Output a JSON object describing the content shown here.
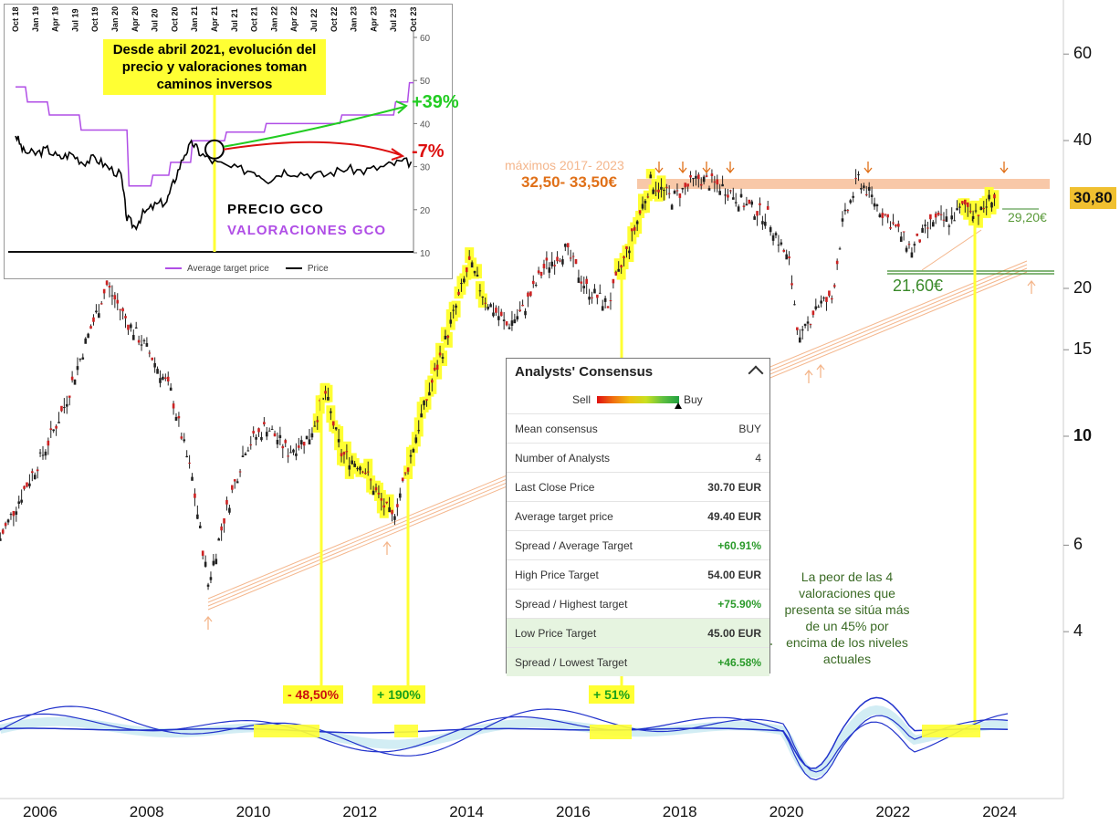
{
  "chart_data": [
    {
      "type": "line",
      "y_scale": "log",
      "y_ticks": [
        4,
        6,
        10,
        15,
        20,
        40,
        60
      ],
      "x_ticks": [
        "2006",
        "2008",
        "2010",
        "2012",
        "2014",
        "2016",
        "2018",
        "2020",
        "2022",
        "2024"
      ],
      "series": [
        {
          "values": [
            [
              2005.2,
              6.2
            ],
            [
              2005.6,
              7.6
            ],
            [
              2006.0,
              9.2
            ],
            [
              2006.4,
              11.5
            ],
            [
              2006.8,
              15.5
            ],
            [
              2007.2,
              20.3
            ],
            [
              2007.6,
              17.0
            ],
            [
              2008.0,
              14.8
            ],
            [
              2008.4,
              12.3
            ],
            [
              2008.8,
              8.2
            ],
            [
              2009.1,
              5.0
            ],
            [
              2009.4,
              6.8
            ],
            [
              2009.8,
              9.5
            ],
            [
              2010.2,
              10.5
            ],
            [
              2010.6,
              9.3
            ],
            [
              2011.0,
              10.0
            ],
            [
              2011.3,
              12.2
            ],
            [
              2011.6,
              9.2
            ],
            [
              2012.0,
              8.7
            ],
            [
              2012.3,
              7.5
            ],
            [
              2012.55,
              6.8
            ],
            [
              2012.8,
              8.3
            ],
            [
              2013.1,
              11.0
            ],
            [
              2013.5,
              15.0
            ],
            [
              2014.0,
              22.5
            ],
            [
              2014.3,
              19.0
            ],
            [
              2014.7,
              16.8
            ],
            [
              2015.0,
              18.0
            ],
            [
              2015.4,
              22.0
            ],
            [
              2015.8,
              24.0
            ],
            [
              2016.2,
              20.0
            ],
            [
              2016.6,
              18.5
            ],
            [
              2017.0,
              24.5
            ],
            [
              2017.4,
              33.0
            ],
            [
              2017.8,
              30.5
            ],
            [
              2018.3,
              33.5
            ],
            [
              2018.8,
              32.0
            ],
            [
              2019.2,
              29.5
            ],
            [
              2019.6,
              28.0
            ],
            [
              2020.0,
              22.5
            ],
            [
              2020.2,
              15.5
            ],
            [
              2020.5,
              18.5
            ],
            [
              2020.8,
              19.0
            ],
            [
              2021.0,
              27.0
            ],
            [
              2021.3,
              33.5
            ],
            [
              2021.7,
              29.0
            ],
            [
              2022.0,
              26.5
            ],
            [
              2022.3,
              24.0
            ],
            [
              2022.7,
              27.5
            ],
            [
              2023.0,
              27.5
            ],
            [
              2023.3,
              29.5
            ],
            [
              2023.6,
              28.5
            ],
            [
              2023.8,
              30.8
            ]
          ]
        }
      ],
      "annotations": [
        "máximos 2017- 2023",
        "32,50- 33,50€",
        "30,80",
        "29,20€",
        "21,60€"
      ],
      "oscillator_labels": [
        "- 48,50%",
        "+ 190%",
        "+ 51%"
      ]
    },
    {
      "type": "line",
      "x_ticks": [
        "Oct 18",
        "Jan 19",
        "Apr 19",
        "Jul 19",
        "Oct 19",
        "Jan 20",
        "Apr 20",
        "Jul 20",
        "Oct 20",
        "Jan 21",
        "Apr 21",
        "Jul 21",
        "Oct 21",
        "Jan 22",
        "Apr 22",
        "Jul 22",
        "Oct 22",
        "Jan 23",
        "Apr 23",
        "Jul 23",
        "Oct 23"
      ],
      "y_ticks": [
        10,
        20,
        30,
        40,
        50,
        60
      ],
      "ylim": [
        10,
        60
      ],
      "series": [
        {
          "name": "Average target price",
          "color": "#b04ee6",
          "values": [
            [
              0,
              48.5
            ],
            [
              0.5,
              48.5
            ],
            [
              0.6,
              45
            ],
            [
              1.6,
              45
            ],
            [
              1.7,
              42
            ],
            [
              3.2,
              42
            ],
            [
              3.3,
              38.5
            ],
            [
              5.6,
              38.5
            ],
            [
              5.7,
              25.5
            ],
            [
              6.8,
              25.5
            ],
            [
              6.9,
              28
            ],
            [
              7.7,
              28
            ],
            [
              7.8,
              31
            ],
            [
              8.8,
              31
            ],
            [
              8.9,
              36
            ],
            [
              10.5,
              36
            ],
            [
              10.6,
              38
            ],
            [
              12.5,
              38
            ],
            [
              12.6,
              40
            ],
            [
              16.3,
              40
            ],
            [
              16.4,
              42
            ],
            [
              19.0,
              42
            ],
            [
              19.1,
              45
            ],
            [
              19.7,
              45
            ],
            [
              19.8,
              49.5
            ],
            [
              20.0,
              49.5
            ]
          ]
        },
        {
          "name": "Price",
          "color": "#000000",
          "values": [
            [
              0,
              37.5
            ],
            [
              0.4,
              33.5
            ],
            [
              1.0,
              33
            ],
            [
              1.6,
              34
            ],
            [
              2.2,
              32
            ],
            [
              2.8,
              33
            ],
            [
              3.4,
              31
            ],
            [
              4.0,
              32
            ],
            [
              4.6,
              30
            ],
            [
              5.3,
              28
            ],
            [
              5.6,
              18
            ],
            [
              6.0,
              16
            ],
            [
              6.4,
              19
            ],
            [
              7.0,
              21
            ],
            [
              7.6,
              22
            ],
            [
              8.0,
              27
            ],
            [
              8.5,
              33
            ],
            [
              8.9,
              35.5
            ],
            [
              9.3,
              33
            ],
            [
              10.0,
              31
            ],
            [
              11.0,
              29.5
            ],
            [
              12.0,
              29
            ],
            [
              12.7,
              27
            ],
            [
              13.5,
              29
            ],
            [
              14.5,
              28.5
            ],
            [
              15.5,
              28
            ],
            [
              16.5,
              29.5
            ],
            [
              17.5,
              29
            ],
            [
              18.5,
              30
            ],
            [
              19.3,
              31
            ],
            [
              20.0,
              31
            ]
          ]
        }
      ],
      "annotations": [
        "Desde abril 2021, evolución del precio y valoraciones toman caminos inversos",
        "+39%",
        "-7%",
        "PRECIO GCO",
        "VALORACIONES GCO"
      ]
    }
  ],
  "inset": {
    "callout": "Desde abril 2021, evolución del precio y valoraciones toman caminos inversos",
    "gain": "+39%",
    "loss": "-7%",
    "price_label": "PRECIO GCO",
    "valuations_label": "VALORACIONES GCO",
    "legend_target": "Average target price",
    "legend_price": "Price",
    "y_ticks": [
      "60",
      "50",
      "40",
      "30",
      "20",
      "10"
    ],
    "x_ticks": [
      "Oct 18",
      "Jan 19",
      "Apr 19",
      "Jul 19",
      "Oct 19",
      "Jan 20",
      "Apr 20",
      "Jul 20",
      "Oct 20",
      "Jan 21",
      "Apr 21",
      "Jul 21",
      "Oct 21",
      "Jan 22",
      "Apr 22",
      "Jul 22",
      "Oct 22",
      "Jan 23",
      "Apr 23",
      "Jul 23",
      "Oct 23"
    ]
  },
  "main": {
    "y_ticks": [
      "60",
      "40",
      "20",
      "15",
      "10",
      "6",
      "4"
    ],
    "x_ticks": [
      "2006",
      "2008",
      "2010",
      "2012",
      "2014",
      "2016",
      "2018",
      "2020",
      "2022",
      "2024"
    ],
    "max_label": "máximos 2017- 2023",
    "max_value": "32,50- 33,50€",
    "last_price": "30,80",
    "resistance": "29,20€",
    "support": "21,60€",
    "perf1": "- 48,50%",
    "perf2": "+ 190%",
    "perf3": "+ 51%",
    "note": "La peor de las 4 valoraciones que presenta se sitúa más de un 45% por encima de los niveles actuales",
    "colors": {
      "highlight": "#ffff33",
      "candle_up": "#222222",
      "candle_down": "#cc2222",
      "max_band": "#f8c8a8",
      "support": "#3a8a2a"
    }
  },
  "consensus": {
    "title": "Analysts' Consensus",
    "sell": "Sell",
    "buy": "Buy",
    "rows": [
      {
        "label": "Mean consensus",
        "value": "BUY"
      },
      {
        "label": "Number of Analysts",
        "value": "4"
      },
      {
        "label": "Last Close Price",
        "value": "30.70 EUR"
      },
      {
        "label": "Average target price",
        "value": "49.40 EUR"
      },
      {
        "label": "Spread / Average Target",
        "value": "+60.91%"
      },
      {
        "label": "High Price Target",
        "value": "54.00 EUR"
      },
      {
        "label": "Spread / Highest target",
        "value": "+75.90%"
      },
      {
        "label": "Low Price Target",
        "value": "45.00 EUR"
      },
      {
        "label": "Spread / Lowest Target",
        "value": "+46.58%"
      }
    ]
  }
}
